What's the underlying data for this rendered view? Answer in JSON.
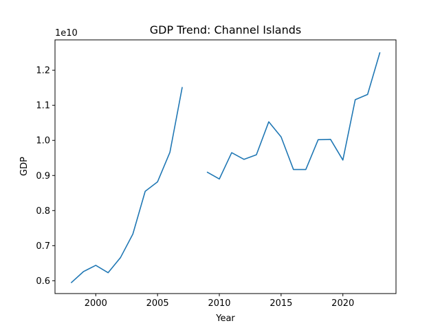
{
  "chart_data": {
    "type": "line",
    "title": "GDP Trend: Channel Islands",
    "xlabel": "Year",
    "ylabel": "GDP",
    "y_offset_text": "1e10",
    "xlim": [
      1996.7,
      2024.3
    ],
    "ylim": [
      0.5635,
      1.2865
    ],
    "y_scale_factor": 10000000000,
    "grid": false,
    "legend": "none",
    "line_color": "#1f77b4",
    "x_ticks": [
      2000,
      2005,
      2010,
      2015,
      2020
    ],
    "x_tick_labels": [
      "2000",
      "2005",
      "2010",
      "2015",
      "2020"
    ],
    "y_ticks": [
      0.6,
      0.7,
      0.8,
      0.9,
      1.0,
      1.1,
      1.2
    ],
    "y_tick_labels": [
      "0.6",
      "0.7",
      "0.8",
      "0.9",
      "1.0",
      "1.1",
      "1.2"
    ],
    "series": [
      {
        "x": [
          1998,
          1999,
          2000,
          2001,
          2002,
          2003,
          2004,
          2005,
          2006,
          2007,
          2008,
          2009,
          2010,
          2011,
          2012,
          2013,
          2014,
          2015,
          2016,
          2017,
          2018,
          2019,
          2020,
          2021,
          2022,
          2023
        ],
        "values": [
          0.594,
          0.626,
          0.644,
          0.623,
          0.666,
          0.733,
          0.855,
          0.882,
          0.966,
          1.152,
          null,
          0.91,
          0.89,
          0.965,
          0.946,
          0.959,
          1.053,
          1.01,
          0.917,
          0.917,
          1.002,
          1.003,
          0.944,
          1.116,
          1.131,
          1.251
        ]
      }
    ]
  }
}
